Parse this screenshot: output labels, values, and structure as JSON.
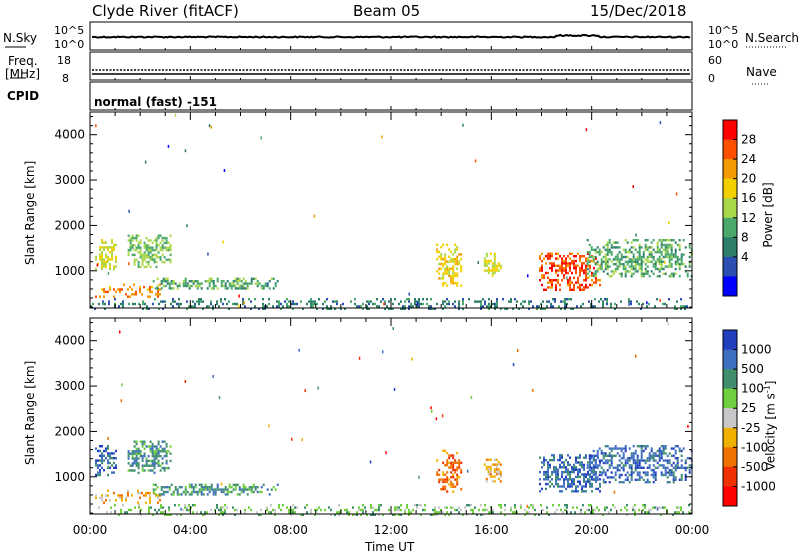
{
  "header": {
    "station": "Clyde River (fitACF)",
    "beam": "Beam 05",
    "date": "15/Dec/2018"
  },
  "top_panels": {
    "nsky_label": "N.Sky",
    "nsky_ticks": [
      "10^5",
      "10^0"
    ],
    "nsearch_label": "N.Search",
    "nsearch_ticks": [
      "10^5",
      "10^0"
    ],
    "freq_label": "Freq.",
    "freq_unit": "[MHz]",
    "freq_ticks": [
      "18",
      "8"
    ],
    "nave_label": "Nave",
    "nave_ticks": [
      "60",
      "0"
    ],
    "cpid_label": "CPID",
    "cpid_value": "normal (fast) -151"
  },
  "chart_data": [
    {
      "type": "heatmap",
      "name": "power",
      "ylabel": "Slant Range [km]",
      "xlabel": "Time UT",
      "ylim": [
        180,
        4500
      ],
      "yticks": [
        "1000",
        "2000",
        "3000",
        "4000"
      ],
      "xticks": [
        "00:00",
        "04:00",
        "08:00",
        "12:00",
        "16:00",
        "20:00",
        "00:00"
      ],
      "colorbar": {
        "label": "Power [dB]",
        "ticks": [
          "28",
          "24",
          "20",
          "16",
          "12",
          "8",
          "4"
        ],
        "colors": [
          "#ff0000",
          "#ff5000",
          "#f59a00",
          "#f2d000",
          "#a9d84a",
          "#4aa86a",
          "#2e7f6a",
          "#2a4fb0",
          "#0000ff"
        ]
      },
      "clusters": [
        {
          "t0": 0.2,
          "t1": 1.0,
          "r0": 1050,
          "r1": 1700,
          "value": 18
        },
        {
          "t0": 0.2,
          "t1": 2.8,
          "r0": 420,
          "r1": 720,
          "value": 24
        },
        {
          "t0": 1.5,
          "t1": 3.2,
          "r0": 1100,
          "r1": 1800,
          "value": 14
        },
        {
          "t0": 2.5,
          "t1": 7.5,
          "r0": 600,
          "r1": 850,
          "value": 12
        },
        {
          "t0": 13.8,
          "t1": 14.8,
          "r0": 700,
          "r1": 1600,
          "value": 20
        },
        {
          "t0": 15.7,
          "t1": 16.4,
          "r0": 900,
          "r1": 1400,
          "value": 18
        },
        {
          "t0": 17.9,
          "t1": 20.3,
          "r0": 600,
          "r1": 1400,
          "value": 28
        },
        {
          "t0": 19.8,
          "t1": 24.0,
          "r0": 900,
          "r1": 1700,
          "value": 12
        },
        {
          "t0": 0.0,
          "t1": 24.0,
          "r0": 180,
          "r1": 400,
          "value": 8
        }
      ]
    },
    {
      "type": "heatmap",
      "name": "velocity",
      "ylabel": "Slant Range [km]",
      "xlabel": "Time UT",
      "ylim": [
        180,
        4500
      ],
      "yticks": [
        "1000",
        "2000",
        "3000",
        "4000"
      ],
      "xticks": [
        "00:00",
        "04:00",
        "08:00",
        "12:00",
        "16:00",
        "20:00",
        "00:00"
      ],
      "colorbar": {
        "label": "Velocity [m s^-1]",
        "ticks": [
          "1000",
          "500",
          "100",
          "25",
          "-25",
          "-100",
          "-500",
          "-1000"
        ],
        "colors": [
          "#1f3fbf",
          "#3f6fbf",
          "#3f8f6f",
          "#6fcf3f",
          "#c8c8c8",
          "#f0b000",
          "#f07000",
          "#f03000",
          "#ff0000"
        ]
      },
      "clusters": [
        {
          "t0": 0.2,
          "t1": 1.0,
          "r0": 1050,
          "r1": 1700,
          "value": 500
        },
        {
          "t0": 0.2,
          "t1": 2.8,
          "r0": 420,
          "r1": 720,
          "value": -100
        },
        {
          "t0": 1.5,
          "t1": 3.2,
          "r0": 1100,
          "r1": 1800,
          "value": 100
        },
        {
          "t0": 2.5,
          "t1": 7.5,
          "r0": 600,
          "r1": 850,
          "value": 100
        },
        {
          "t0": 13.8,
          "t1": 14.8,
          "r0": 700,
          "r1": 1600,
          "value": -500
        },
        {
          "t0": 15.7,
          "t1": 16.4,
          "r0": 900,
          "r1": 1400,
          "value": -100
        },
        {
          "t0": 17.9,
          "t1": 20.3,
          "r0": 700,
          "r1": 1500,
          "value": 500
        },
        {
          "t0": 19.8,
          "t1": 24.0,
          "r0": 900,
          "r1": 1700,
          "value": 500
        },
        {
          "t0": 0.0,
          "t1": 24.0,
          "r0": 180,
          "r1": 400,
          "value": 25
        }
      ]
    }
  ]
}
